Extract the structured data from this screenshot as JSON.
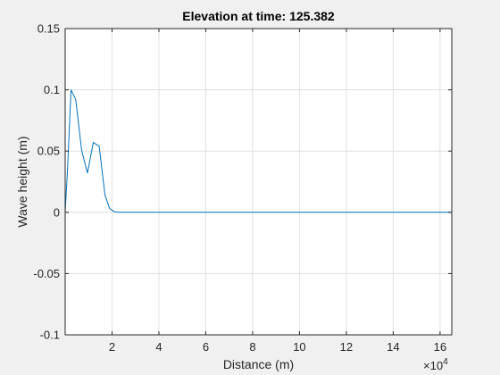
{
  "chart_data": {
    "type": "line",
    "title": "Elevation at time: 125.382",
    "xlabel": "Distance (m)",
    "ylabel": "Wave height (m)",
    "x_exponent_label": "×10",
    "x_exponent_power": "4",
    "xlim": [
      0,
      16.5
    ],
    "ylim": [
      -0.1,
      0.15
    ],
    "x_scale_factor": 10000,
    "x_ticks": [
      2,
      4,
      6,
      8,
      10,
      12,
      14,
      16
    ],
    "x_tick_labels": [
      "2",
      "4",
      "6",
      "8",
      "10",
      "12",
      "14",
      "16"
    ],
    "y_ticks": [
      -0.1,
      -0.05,
      0,
      0.05,
      0.1,
      0.15
    ],
    "y_tick_labels": [
      "-0.1",
      "-0.05",
      "0",
      "0.05",
      "0.1",
      "0.15"
    ],
    "grid": true,
    "series": [
      {
        "color": "#0072bd",
        "x": [
          0,
          0.1,
          0.25,
          0.45,
          0.7,
          0.95,
          1.2,
          1.45,
          1.7,
          1.9,
          2.1,
          2.3,
          2.6,
          3.0,
          4.0,
          8.0,
          12.0,
          16.5
        ],
        "y": [
          0,
          0.035,
          0.1,
          0.092,
          0.051,
          0.032,
          0.057,
          0.054,
          0.014,
          0.003,
          0.0005,
          0,
          0,
          0,
          0,
          0,
          0,
          0
        ]
      }
    ]
  }
}
